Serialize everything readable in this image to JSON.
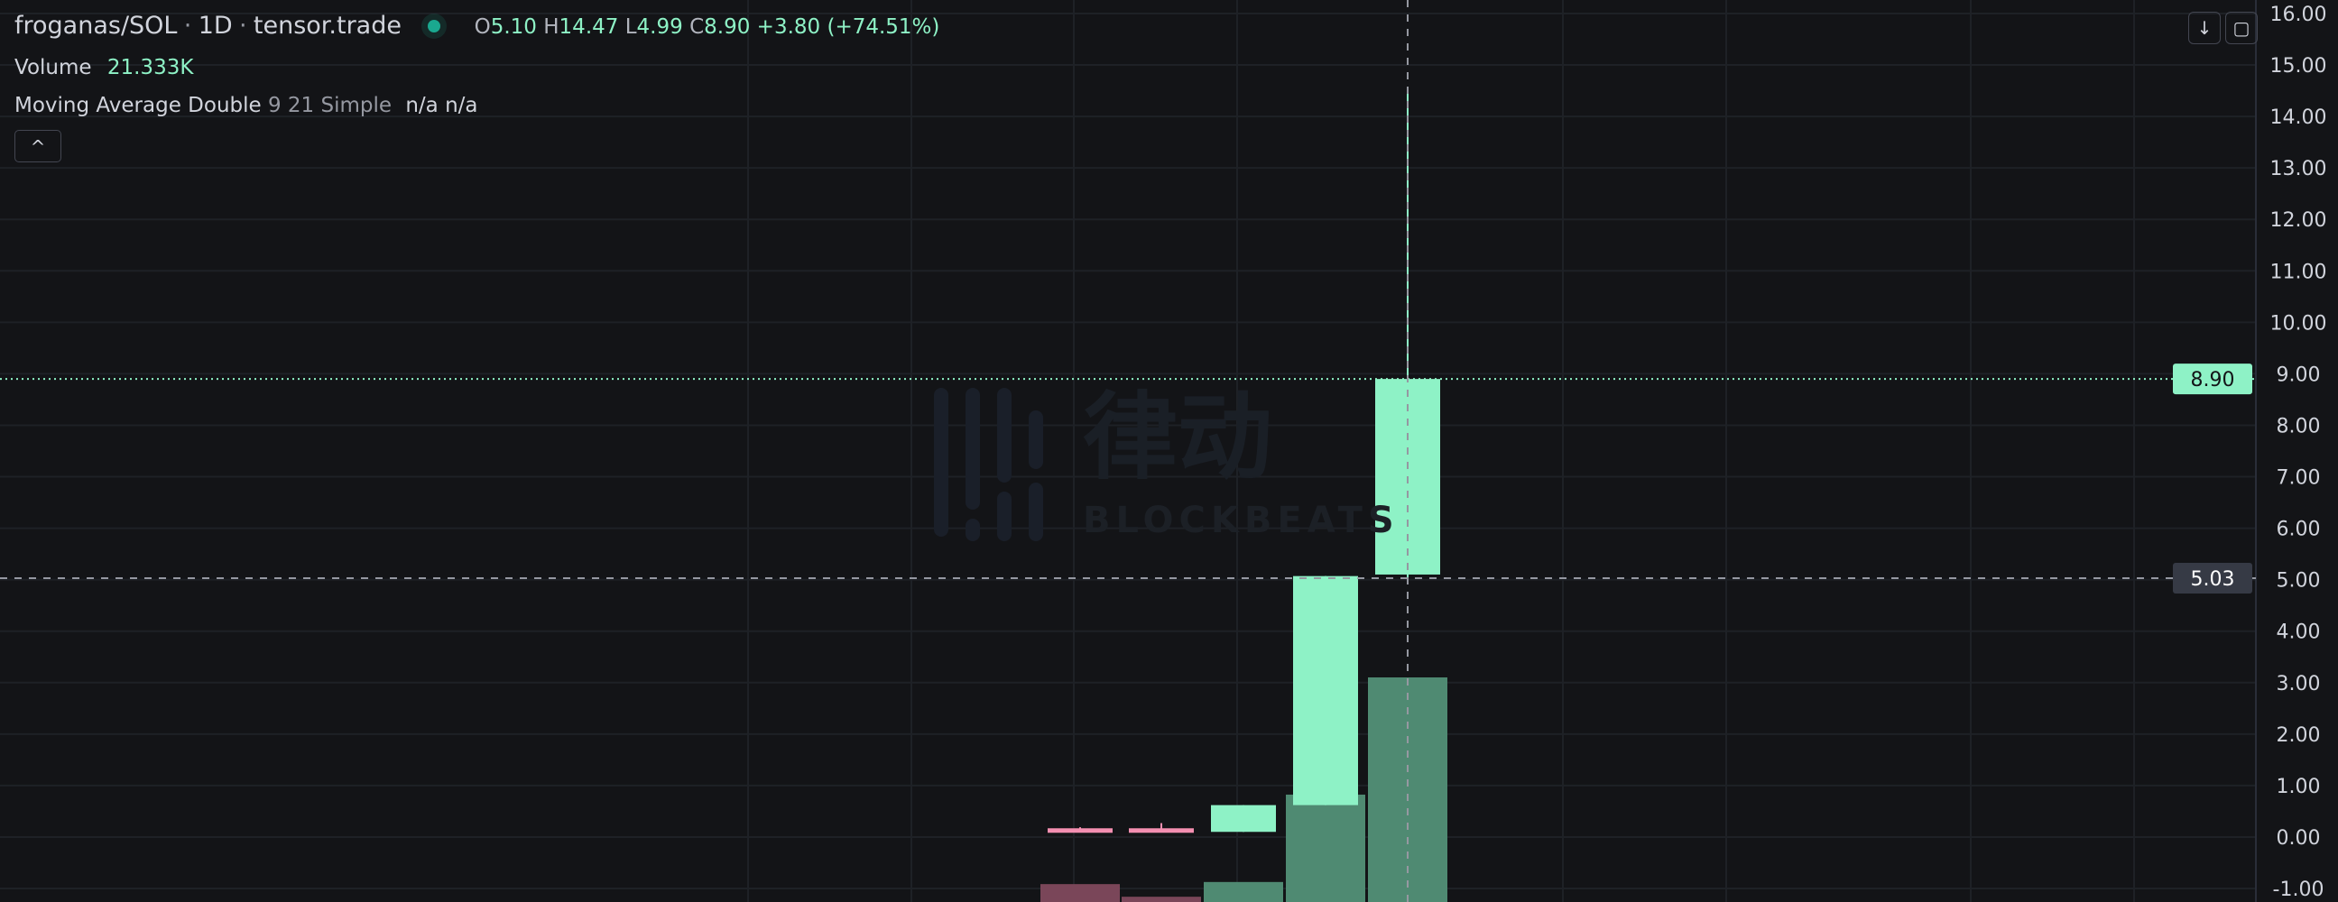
{
  "header": {
    "symbol": "froganas/SOL",
    "sep1": "·",
    "interval": "1D",
    "sep2": "·",
    "source": "tensor.trade",
    "ohlc": {
      "o_label": "O",
      "o": "5.10",
      "h_label": "H",
      "h": "14.47",
      "l_label": "L",
      "l": "4.99",
      "c_label": "C",
      "c": "8.90",
      "change": "+3.80 (+74.51%)"
    }
  },
  "volume_legend": {
    "label": "Volume",
    "value": "21.333K"
  },
  "ma_legend": {
    "label": "Moving Average Double",
    "params": "9 21 Simple",
    "v1": "n/a",
    "v2": "n/a"
  },
  "buttons": {
    "collapse": "^",
    "download": "↓",
    "fullscreen": "▢"
  },
  "watermark": {
    "cn": "律动",
    "en": "BLOCKBEATS"
  },
  "colors": {
    "up": "#8ef2c6",
    "down": "#f48fb1",
    "vol_up": "#4f8a72",
    "vol_down": "#7a4659",
    "background": "#131417",
    "grid": "#1e2126"
  },
  "chart_data": {
    "type": "candlestick",
    "ylim": [
      -1,
      16
    ],
    "y_ticks": [
      "16.00",
      "15.00",
      "14.00",
      "13.00",
      "12.00",
      "11.00",
      "10.00",
      "9.00",
      "8.00",
      "7.00",
      "6.00",
      "5.00",
      "4.00",
      "3.00",
      "2.00",
      "1.00",
      "0.00",
      "-1.00"
    ],
    "last_price_label": "8.90",
    "crosshair_price_label": "5.03",
    "crosshair_price": 5.03,
    "last_price": 8.9,
    "grid": true,
    "candles": [
      {
        "o": 0.17,
        "h": 0.19,
        "l": 0.12,
        "c": 0.14,
        "volume_k": 1.7
      },
      {
        "o": 0.17,
        "h": 0.27,
        "l": 0.09,
        "c": 0.1,
        "volume_k": 0.5
      },
      {
        "o": 0.1,
        "h": 0.62,
        "l": 0.1,
        "c": 0.62,
        "volume_k": 1.9
      },
      {
        "o": 0.62,
        "h": 5.07,
        "l": 0.62,
        "c": 5.07,
        "volume_k": 10.2
      },
      {
        "o": 5.1,
        "h": 14.47,
        "l": 4.99,
        "c": 8.9,
        "volume_k": 21.333
      }
    ]
  }
}
